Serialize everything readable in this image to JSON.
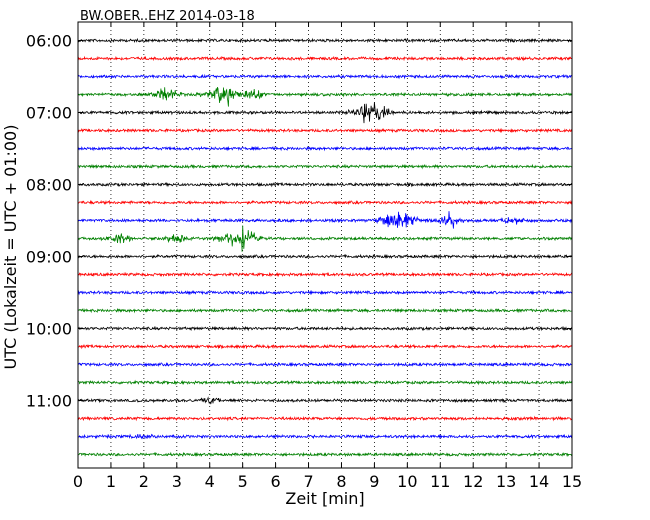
{
  "chart_data": {
    "type": "line",
    "title": "BW.OBER..EHZ 2014-03-18",
    "xlabel": "Zeit  [min]",
    "ylabel": "UTC (Lokalzeit = UTC + 01:00)",
    "xlim": [
      0,
      15
    ],
    "x_ticks": [
      "0",
      "1",
      "2",
      "3",
      "4",
      "5",
      "6",
      "7",
      "8",
      "9",
      "10",
      "11",
      "12",
      "13",
      "14",
      "15"
    ],
    "y_ticks": [
      "06:00",
      "07:00",
      "08:00",
      "09:00",
      "10:00",
      "11:00"
    ],
    "grid": "vertical dotted at each minute",
    "trace_interval_minutes": 15,
    "trace_colors": [
      "#000000",
      "#ff0000",
      "#0000ff",
      "#008000"
    ],
    "series": [
      {
        "start": "06:00",
        "events": []
      },
      {
        "start": "06:15",
        "events": []
      },
      {
        "start": "06:30",
        "events": []
      },
      {
        "start": "06:45",
        "events": [
          {
            "t": 2.7,
            "amp": 0.8
          },
          {
            "t": 4.4,
            "amp": 1.4
          },
          {
            "t": 5.3,
            "amp": 0.5
          }
        ]
      },
      {
        "start": "07:00",
        "events": [
          {
            "t": 8.9,
            "amp": 1.4
          }
        ]
      },
      {
        "start": "07:15",
        "events": []
      },
      {
        "start": "07:30",
        "events": []
      },
      {
        "start": "07:45",
        "events": []
      },
      {
        "start": "08:00",
        "events": []
      },
      {
        "start": "08:15",
        "events": []
      },
      {
        "start": "08:30",
        "events": [
          {
            "t": 9.7,
            "amp": 1.2
          },
          {
            "t": 11.3,
            "amp": 1.0
          },
          {
            "t": 13.2,
            "amp": 0.4
          }
        ]
      },
      {
        "start": "08:45",
        "events": [
          {
            "t": 1.3,
            "amp": 0.5
          },
          {
            "t": 3.0,
            "amp": 0.4
          },
          {
            "t": 4.9,
            "amp": 1.5
          }
        ]
      },
      {
        "start": "09:00",
        "events": []
      },
      {
        "start": "09:15",
        "events": []
      },
      {
        "start": "09:30",
        "events": []
      },
      {
        "start": "09:45",
        "events": []
      },
      {
        "start": "10:00",
        "events": []
      },
      {
        "start": "10:15",
        "events": []
      },
      {
        "start": "10:30",
        "events": []
      },
      {
        "start": "10:45",
        "events": []
      },
      {
        "start": "11:00",
        "events": [
          {
            "t": 4.0,
            "amp": 0.3
          }
        ]
      },
      {
        "start": "11:15",
        "events": []
      },
      {
        "start": "11:30",
        "events": [
          {
            "t": 2.0,
            "amp": 0.3
          }
        ]
      },
      {
        "start": "11:45",
        "events": []
      }
    ]
  }
}
